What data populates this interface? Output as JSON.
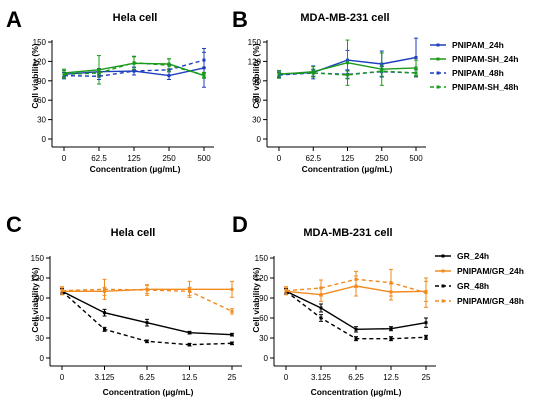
{
  "colors": {
    "blue": "#1f3fbf",
    "green": "#1a9a1a",
    "black": "#000000",
    "orange": "#f28a1e"
  },
  "chart_data": [
    {
      "panel": "A",
      "title": "Hela cell",
      "type": "line",
      "xlabel": "Concentration (µg/mL)",
      "ylabel": "Cell viability (%)",
      "categories": [
        "0",
        "62.5",
        "125",
        "250",
        "500"
      ],
      "ylim": [
        0,
        150
      ],
      "yticks": [
        0,
        30,
        60,
        90,
        120,
        150
      ],
      "grid": false,
      "legend": "right",
      "series": [
        {
          "name": "PNIPAM_24h",
          "color": "blue",
          "dash": false,
          "values": [
            100,
            104,
            105,
            98,
            110
          ],
          "errors": [
            6,
            5,
            6,
            6,
            30
          ]
        },
        {
          "name": "PNIPAM-SH_24h",
          "color": "green",
          "dash": false,
          "values": [
            102,
            107,
            117,
            116,
            98
          ],
          "errors": [
            6,
            22,
            10,
            8,
            4
          ]
        },
        {
          "name": "PNIPAM_48h",
          "color": "blue",
          "dash": true,
          "values": [
            98,
            97,
            105,
            107,
            122
          ],
          "errors": [
            5,
            5,
            6,
            8,
            12
          ]
        },
        {
          "name": "PNIPAM-SH_48h",
          "color": "green",
          "dash": true,
          "values": [
            100,
            102,
            118,
            114,
            99
          ],
          "errors": [
            6,
            6,
            10,
            10,
            4
          ]
        }
      ]
    },
    {
      "panel": "B",
      "title": "MDA-MB-231 cell",
      "type": "line",
      "xlabel": "Concentration (µg/mL)",
      "ylabel": "Cell viability (%)",
      "categories": [
        "0",
        "62.5",
        "125",
        "250",
        "500"
      ],
      "ylim": [
        0,
        150
      ],
      "yticks": [
        0,
        30,
        60,
        90,
        120,
        150
      ],
      "grid": false,
      "legend": "right",
      "series": [
        {
          "name": "PNIPAM_24h",
          "color": "blue",
          "dash": false,
          "values": [
            100,
            103,
            122,
            116,
            126
          ],
          "errors": [
            5,
            10,
            15,
            20,
            30
          ]
        },
        {
          "name": "PNIPAM-SH_24h",
          "color": "green",
          "dash": false,
          "values": [
            100,
            104,
            118,
            108,
            110
          ],
          "errors": [
            6,
            8,
            35,
            25,
            12
          ]
        },
        {
          "name": "PNIPAM_48h",
          "color": "blue",
          "dash": true,
          "values": [
            99,
            102,
            100,
            104,
            102
          ],
          "errors": [
            4,
            5,
            6,
            8,
            5
          ]
        },
        {
          "name": "PNIPAM-SH_48h",
          "color": "green",
          "dash": true,
          "values": [
            101,
            102,
            99,
            105,
            102
          ],
          "errors": [
            5,
            6,
            6,
            8,
            5
          ]
        }
      ]
    },
    {
      "panel": "C",
      "title": "Hela cell",
      "type": "line",
      "xlabel": "Concentration (µg/mL)",
      "ylabel": "Cell viability (%)",
      "categories": [
        "0",
        "3.125",
        "6.25",
        "12.5",
        "25"
      ],
      "ylim": [
        0,
        150
      ],
      "yticks": [
        0,
        30,
        60,
        90,
        120,
        150
      ],
      "grid": false,
      "legend": "right",
      "series": [
        {
          "name": "GR_24h",
          "color": "black",
          "dash": false,
          "values": [
            100,
            68,
            53,
            38,
            35
          ],
          "errors": [
            4,
            5,
            5,
            2,
            2
          ]
        },
        {
          "name": "PNIPAM/GR_24h",
          "color": "orange",
          "dash": false,
          "values": [
            100,
            100,
            103,
            103,
            103
          ],
          "errors": [
            5,
            6,
            6,
            12,
            12
          ]
        },
        {
          "name": "GR_48h",
          "color": "black",
          "dash": true,
          "values": [
            100,
            43,
            25,
            20,
            22
          ],
          "errors": [
            4,
            3,
            2,
            2,
            2
          ]
        },
        {
          "name": "PNIPAM/GR_48h",
          "color": "orange",
          "dash": true,
          "values": [
            101,
            103,
            102,
            100,
            70
          ],
          "errors": [
            6,
            15,
            8,
            6,
            4
          ]
        }
      ]
    },
    {
      "panel": "D",
      "title": "MDA-MB-231 cell",
      "type": "line",
      "xlabel": "Concentration (µg/mL)",
      "ylabel": "Cell viability (%)",
      "categories": [
        "0",
        "3.125",
        "6.25",
        "12.5",
        "25"
      ],
      "ylim": [
        0,
        150
      ],
      "yticks": [
        0,
        30,
        60,
        90,
        120,
        150
      ],
      "grid": false,
      "legend": "right",
      "series": [
        {
          "name": "GR_24h",
          "color": "black",
          "dash": false,
          "values": [
            100,
            75,
            43,
            44,
            53
          ],
          "errors": [
            4,
            6,
            4,
            3,
            7
          ]
        },
        {
          "name": "PNIPAM/GR_24h",
          "color": "orange",
          "dash": false,
          "values": [
            100,
            95,
            108,
            99,
            100
          ],
          "errors": [
            5,
            10,
            15,
            12,
            15
          ]
        },
        {
          "name": "GR_48h",
          "color": "black",
          "dash": true,
          "values": [
            100,
            60,
            29,
            29,
            31
          ],
          "errors": [
            4,
            5,
            3,
            3,
            3
          ]
        },
        {
          "name": "PNIPAM/GR_48h",
          "color": "orange",
          "dash": true,
          "values": [
            101,
            105,
            118,
            113,
            98
          ],
          "errors": [
            6,
            12,
            12,
            20,
            22
          ]
        }
      ]
    }
  ]
}
